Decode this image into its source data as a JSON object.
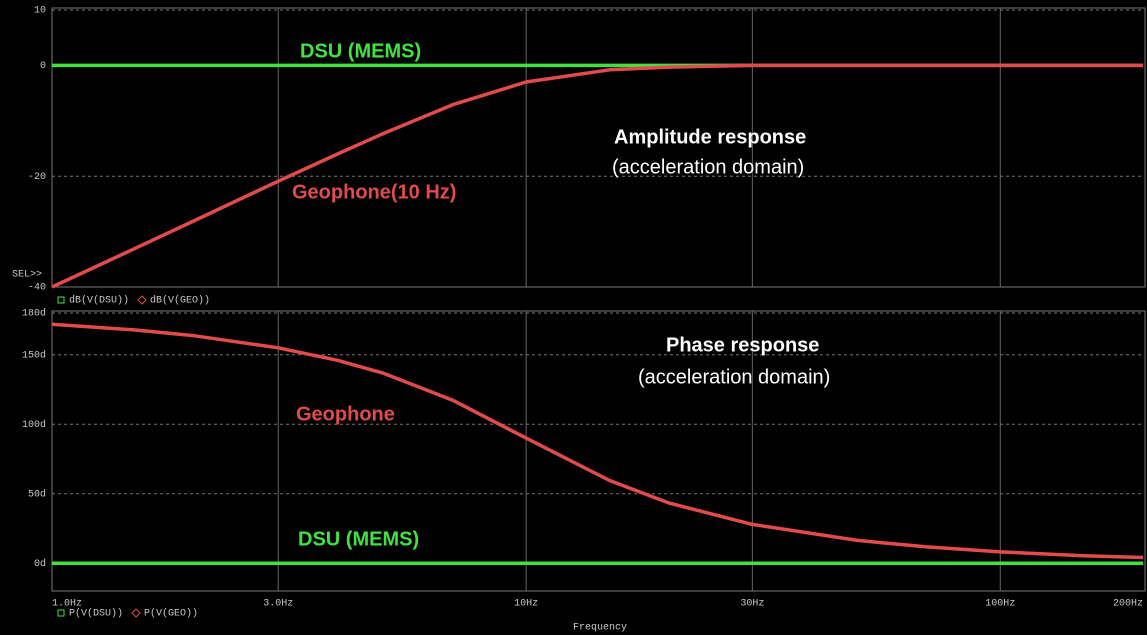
{
  "chart_data": [
    {
      "type": "line",
      "xlim": [
        1,
        200
      ],
      "log_x": true,
      "ylim": [
        -40,
        10
      ],
      "yticks": [
        10,
        0,
        -20,
        -40
      ],
      "grid": true,
      "sel_label": "SEL>>",
      "x": [
        1,
        1.5,
        2,
        3,
        4,
        5,
        7,
        10,
        15,
        20,
        30,
        50,
        70,
        100,
        150,
        200
      ],
      "series": [
        {
          "name": "dB(V(DSU))",
          "color": "#3fe23f",
          "marker": "square",
          "values": [
            0,
            0,
            0,
            0,
            0,
            0,
            0,
            0,
            0,
            0,
            0,
            0,
            0,
            0,
            0,
            0
          ]
        },
        {
          "name": "dB(V(GEO))",
          "color": "#e24b4b",
          "marker": "diamond",
          "values": [
            -40,
            -33,
            -28,
            -20.9,
            -16,
            -12.3,
            -7.1,
            -3,
            -0.8,
            -0.3,
            0,
            0,
            0,
            0,
            0,
            0
          ]
        }
      ],
      "annotations": [
        {
          "text": "DSU (MEMS)",
          "color": "#3fe23f",
          "bold": true
        },
        {
          "text": "Amplitude response",
          "color": "#ffffff",
          "bold": true
        },
        {
          "text": "(acceleration domain)",
          "color": "#ffffff",
          "bold": false
        },
        {
          "text": "Geophone(10 Hz)",
          "color": "#e24b4b",
          "bold": true
        }
      ]
    },
    {
      "type": "line",
      "xlim": [
        1,
        200
      ],
      "log_x": true,
      "xticks": [
        {
          "value": 1,
          "label": "1.0Hz"
        },
        {
          "value": 3,
          "label": "3.0Hz"
        },
        {
          "value": 10,
          "label": "10Hz"
        },
        {
          "value": 30,
          "label": "30Hz"
        },
        {
          "value": 100,
          "label": "100Hz"
        },
        {
          "value": 200,
          "label": "200Hz"
        }
      ],
      "xlabel": "Frequency",
      "ylim": [
        -20,
        180
      ],
      "yticks": [
        {
          "value": 180,
          "label": "180d"
        },
        {
          "value": 150,
          "label": "150d"
        },
        {
          "value": 100,
          "label": "100d"
        },
        {
          "value": 50,
          "label": "50d"
        },
        {
          "value": 0,
          "label": "0d"
        }
      ],
      "grid": true,
      "x": [
        1,
        1.5,
        2,
        3,
        4,
        5,
        7,
        10,
        15,
        20,
        30,
        50,
        70,
        100,
        150,
        200
      ],
      "series": [
        {
          "name": "P(V(DSU))",
          "color": "#3fe23f",
          "marker": "square",
          "values": [
            0,
            0,
            0,
            0,
            0,
            0,
            0,
            0,
            0,
            0,
            0,
            0,
            0,
            0,
            0,
            0
          ]
        },
        {
          "name": "P(V(GEO))",
          "color": "#e24b4b",
          "marker": "diamond",
          "values": [
            171.9,
            167.8,
            163.6,
            155,
            146,
            136.7,
            117.3,
            90,
            59.5,
            43.3,
            27.9,
            16.4,
            11.7,
            8.1,
            5.4,
            4.1
          ]
        }
      ],
      "annotations": [
        {
          "text": "Phase response",
          "color": "#ffffff",
          "bold": true
        },
        {
          "text": "(acceleration domain)",
          "color": "#ffffff",
          "bold": false
        },
        {
          "text": "Geophone",
          "color": "#e24b4b",
          "bold": true
        },
        {
          "text": "DSU (MEMS)",
          "color": "#3fe23f",
          "bold": true
        }
      ]
    }
  ]
}
